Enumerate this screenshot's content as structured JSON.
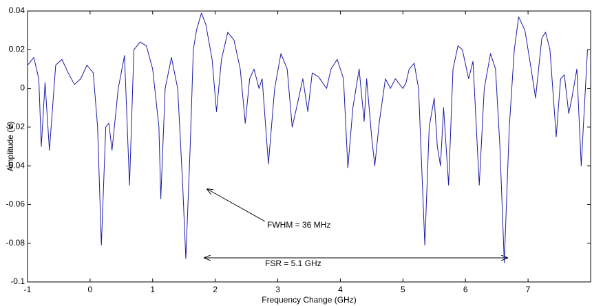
{
  "chart_data": {
    "type": "line",
    "xlabel": "Frequency Change (GHz)",
    "ylabel": "Amplitude (V)",
    "xlim": [
      -1,
      8
    ],
    "ylim": [
      -0.1,
      0.04
    ],
    "xticks": [
      -1,
      0,
      1,
      2,
      3,
      4,
      5,
      6,
      7
    ],
    "yticks": [
      0.04,
      0.02,
      0,
      -0.02,
      -0.04,
      -0.06,
      -0.08,
      -0.1
    ],
    "annotations": [
      "FWHM = 36 MHz",
      "FSR = 5.1 GHz"
    ],
    "series": [
      {
        "color": "#1a1aa6",
        "x": [
          -1.0,
          -0.9,
          -0.82,
          -0.78,
          -0.72,
          -0.65,
          -0.55,
          -0.45,
          -0.35,
          -0.25,
          -0.15,
          -0.05,
          0.05,
          0.12,
          0.18,
          0.25,
          0.3,
          0.35,
          0.45,
          0.55,
          0.63,
          0.7,
          0.8,
          0.9,
          1.0,
          1.1,
          1.13,
          1.2,
          1.3,
          1.4,
          1.48,
          1.53,
          1.6,
          1.65,
          1.7,
          1.78,
          1.85,
          1.95,
          2.02,
          2.1,
          2.2,
          2.3,
          2.4,
          2.48,
          2.55,
          2.62,
          2.7,
          2.75,
          2.85,
          2.95,
          3.05,
          3.15,
          3.23,
          3.3,
          3.4,
          3.48,
          3.55,
          3.65,
          3.78,
          3.85,
          3.95,
          4.05,
          4.12,
          4.2,
          4.3,
          4.38,
          4.42,
          4.5,
          4.55,
          4.62,
          4.72,
          4.8,
          4.88,
          4.95,
          5.0,
          5.05,
          5.1,
          5.18,
          5.25,
          5.35,
          5.42,
          5.5,
          5.55,
          5.6,
          5.65,
          5.73,
          5.8,
          5.88,
          5.95,
          6.05,
          6.12,
          6.22,
          6.3,
          6.4,
          6.48,
          6.55,
          6.62,
          6.7,
          6.78,
          6.85,
          6.95,
          7.05,
          7.12,
          7.22,
          7.28,
          7.35,
          7.45,
          7.52,
          7.58,
          7.65,
          7.7,
          7.78,
          7.85,
          7.95
        ],
        "values": [
          0.012,
          0.016,
          0.005,
          -0.03,
          0.003,
          -0.032,
          0.012,
          0.015,
          0.008,
          0.002,
          0.005,
          0.012,
          0.008,
          -0.02,
          -0.081,
          -0.02,
          -0.018,
          -0.032,
          0.0,
          0.017,
          -0.05,
          0.02,
          0.024,
          0.022,
          0.01,
          -0.02,
          -0.057,
          0.0,
          0.016,
          0.0,
          -0.05,
          -0.088,
          -0.03,
          0.02,
          0.03,
          0.039,
          0.033,
          0.015,
          -0.012,
          0.015,
          0.029,
          0.025,
          0.01,
          -0.018,
          0.005,
          0.01,
          0.0,
          0.005,
          -0.039,
          0.0,
          0.018,
          0.01,
          -0.02,
          -0.01,
          0.005,
          -0.012,
          0.008,
          0.006,
          0.0,
          0.01,
          0.015,
          0.005,
          -0.041,
          -0.01,
          0.01,
          -0.017,
          0.005,
          -0.025,
          -0.04,
          -0.018,
          0.005,
          0.0,
          0.005,
          0.002,
          0.0,
          0.003,
          0.01,
          0.013,
          0.0,
          -0.081,
          -0.02,
          -0.005,
          -0.03,
          -0.04,
          -0.01,
          -0.05,
          0.01,
          0.022,
          0.02,
          0.005,
          0.014,
          -0.05,
          0.0,
          0.018,
          0.01,
          -0.03,
          -0.09,
          -0.02,
          0.02,
          0.037,
          0.03,
          0.01,
          -0.005,
          0.026,
          0.029,
          0.02,
          -0.025,
          0.005,
          0.007,
          -0.013,
          -0.005,
          0.01,
          -0.04,
          0.02
        ]
      }
    ]
  }
}
